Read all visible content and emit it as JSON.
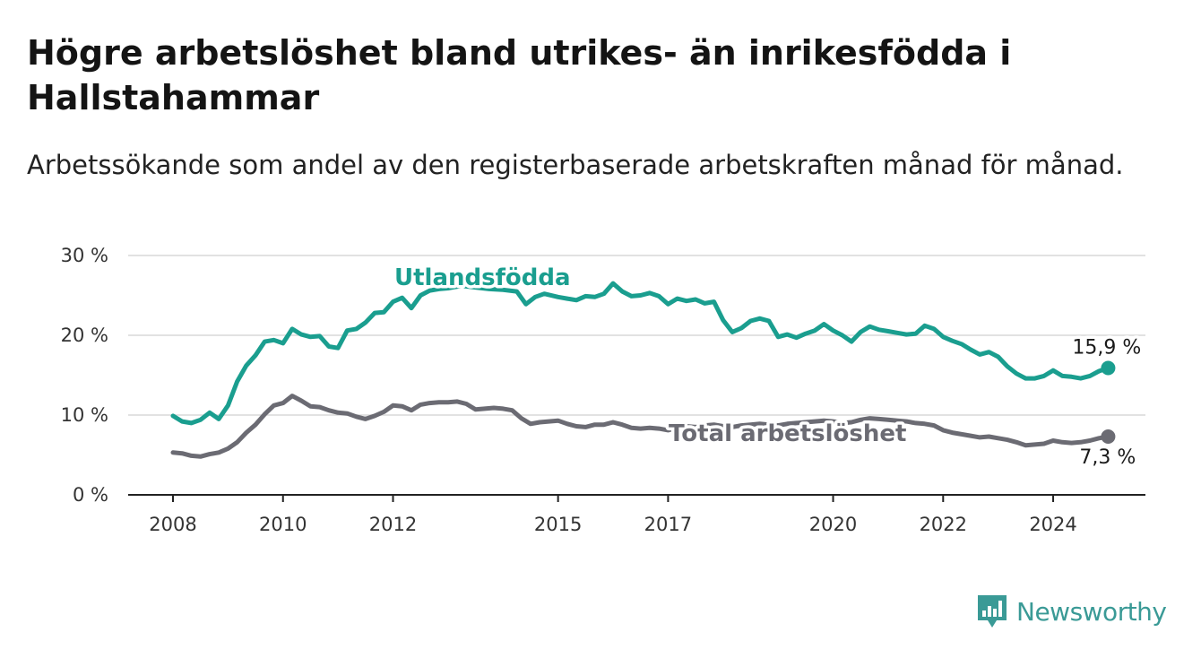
{
  "header": {
    "title": "Högre arbetslöshet bland utrikes- än inrikesfödda i Hallstahammar",
    "subtitle": "Arbetssökande som andel av den registerbaserade arbetskraften månad för månad."
  },
  "brand": {
    "name": "Newsworthy",
    "icon": "newsworthy-chart-icon",
    "color": "#3a9a96"
  },
  "chart_data": {
    "type": "line",
    "title": "Högre arbetslöshet bland utrikes- än inrikesfödda i Hallstahammar",
    "subtitle": "Arbetssökande som andel av den registerbaserade arbetskraften månad för månad.",
    "xlabel": "",
    "ylabel": "",
    "x_range": [
      "2008-01",
      "2025-06"
    ],
    "ylim": [
      0,
      30
    ],
    "y_ticks": [
      0,
      10,
      20,
      30
    ],
    "y_tick_labels": [
      "0 %",
      "10 %",
      "20 %",
      "30 %"
    ],
    "x_ticks": [
      "2008-01",
      "2010-01",
      "2012-01",
      "2015-01",
      "2017-01",
      "2020-01",
      "2022-01",
      "2024-01"
    ],
    "x_tick_labels": [
      "2008",
      "2010",
      "2012",
      "2015",
      "2017",
      "2020",
      "2022",
      "2024"
    ],
    "grid": "horizontal",
    "legend": "inline labels",
    "series": [
      {
        "name": "Utlandsfödda",
        "color": "#1a9e8f",
        "end_label": "15,9 %",
        "points": [
          [
            "2008-01",
            9.9
          ],
          [
            "2008-03",
            9.2
          ],
          [
            "2008-05",
            9.0
          ],
          [
            "2008-07",
            9.4
          ],
          [
            "2008-09",
            10.3
          ],
          [
            "2008-11",
            9.5
          ],
          [
            "2009-01",
            11.2
          ],
          [
            "2009-03",
            14.2
          ],
          [
            "2009-05",
            16.2
          ],
          [
            "2009-07",
            17.5
          ],
          [
            "2009-09",
            19.2
          ],
          [
            "2009-11",
            19.4
          ],
          [
            "2010-01",
            19.0
          ],
          [
            "2010-03",
            20.8
          ],
          [
            "2010-05",
            20.1
          ],
          [
            "2010-07",
            19.8
          ],
          [
            "2010-09",
            19.9
          ],
          [
            "2010-11",
            18.6
          ],
          [
            "2011-01",
            18.4
          ],
          [
            "2011-03",
            20.6
          ],
          [
            "2011-05",
            20.8
          ],
          [
            "2011-07",
            21.6
          ],
          [
            "2011-09",
            22.8
          ],
          [
            "2011-11",
            22.9
          ],
          [
            "2012-01",
            24.2
          ],
          [
            "2012-03",
            24.7
          ],
          [
            "2012-05",
            23.4
          ],
          [
            "2012-07",
            25.0
          ],
          [
            "2012-09",
            25.6
          ],
          [
            "2012-11",
            25.8
          ],
          [
            "2013-01",
            25.9
          ],
          [
            "2013-04",
            26.2
          ],
          [
            "2013-07",
            26.0
          ],
          [
            "2013-10",
            25.8
          ],
          [
            "2014-01",
            25.7
          ],
          [
            "2014-04",
            25.5
          ],
          [
            "2014-06",
            23.9
          ],
          [
            "2014-08",
            24.8
          ],
          [
            "2014-10",
            25.2
          ],
          [
            "2015-01",
            24.8
          ],
          [
            "2015-03",
            24.6
          ],
          [
            "2015-05",
            24.4
          ],
          [
            "2015-07",
            24.9
          ],
          [
            "2015-09",
            24.8
          ],
          [
            "2015-11",
            25.2
          ],
          [
            "2016-01",
            26.5
          ],
          [
            "2016-03",
            25.5
          ],
          [
            "2016-05",
            24.9
          ],
          [
            "2016-07",
            25.0
          ],
          [
            "2016-09",
            25.3
          ],
          [
            "2016-11",
            24.9
          ],
          [
            "2017-01",
            23.9
          ],
          [
            "2017-03",
            24.6
          ],
          [
            "2017-05",
            24.3
          ],
          [
            "2017-07",
            24.5
          ],
          [
            "2017-09",
            24.0
          ],
          [
            "2017-11",
            24.2
          ],
          [
            "2018-01",
            21.9
          ],
          [
            "2018-03",
            20.4
          ],
          [
            "2018-05",
            20.9
          ],
          [
            "2018-07",
            21.8
          ],
          [
            "2018-09",
            22.1
          ],
          [
            "2018-11",
            21.8
          ],
          [
            "2019-01",
            19.8
          ],
          [
            "2019-03",
            20.1
          ],
          [
            "2019-05",
            19.7
          ],
          [
            "2019-07",
            20.2
          ],
          [
            "2019-09",
            20.6
          ],
          [
            "2019-11",
            21.4
          ],
          [
            "2020-01",
            20.6
          ],
          [
            "2020-03",
            20.0
          ],
          [
            "2020-05",
            19.2
          ],
          [
            "2020-07",
            20.4
          ],
          [
            "2020-09",
            21.1
          ],
          [
            "2020-11",
            20.7
          ],
          [
            "2021-01",
            20.5
          ],
          [
            "2021-03",
            20.3
          ],
          [
            "2021-05",
            20.1
          ],
          [
            "2021-07",
            20.2
          ],
          [
            "2021-09",
            21.2
          ],
          [
            "2021-11",
            20.8
          ],
          [
            "2022-01",
            19.8
          ],
          [
            "2022-03",
            19.3
          ],
          [
            "2022-05",
            18.9
          ],
          [
            "2022-07",
            18.2
          ],
          [
            "2022-09",
            17.6
          ],
          [
            "2022-11",
            17.9
          ],
          [
            "2023-01",
            17.3
          ],
          [
            "2023-03",
            16.1
          ],
          [
            "2023-05",
            15.2
          ],
          [
            "2023-07",
            14.6
          ],
          [
            "2023-09",
            14.6
          ],
          [
            "2023-11",
            14.9
          ],
          [
            "2024-01",
            15.6
          ],
          [
            "2024-03",
            14.9
          ],
          [
            "2024-05",
            14.8
          ],
          [
            "2024-07",
            14.6
          ],
          [
            "2024-09",
            14.9
          ],
          [
            "2024-11",
            15.5
          ],
          [
            "2025-01",
            15.9
          ]
        ]
      },
      {
        "name": "Total arbetslöshet",
        "color": "#6b6b73",
        "end_label": "7,3 %",
        "points": [
          [
            "2008-01",
            5.3
          ],
          [
            "2008-03",
            5.2
          ],
          [
            "2008-05",
            4.9
          ],
          [
            "2008-07",
            4.8
          ],
          [
            "2008-09",
            5.1
          ],
          [
            "2008-11",
            5.3
          ],
          [
            "2009-01",
            5.8
          ],
          [
            "2009-03",
            6.6
          ],
          [
            "2009-05",
            7.8
          ],
          [
            "2009-07",
            8.8
          ],
          [
            "2009-09",
            10.1
          ],
          [
            "2009-11",
            11.2
          ],
          [
            "2010-01",
            11.5
          ],
          [
            "2010-03",
            12.4
          ],
          [
            "2010-05",
            11.8
          ],
          [
            "2010-07",
            11.1
          ],
          [
            "2010-09",
            11.0
          ],
          [
            "2010-11",
            10.6
          ],
          [
            "2011-01",
            10.3
          ],
          [
            "2011-03",
            10.2
          ],
          [
            "2011-05",
            9.8
          ],
          [
            "2011-07",
            9.5
          ],
          [
            "2011-09",
            9.9
          ],
          [
            "2011-11",
            10.4
          ],
          [
            "2012-01",
            11.2
          ],
          [
            "2012-03",
            11.1
          ],
          [
            "2012-05",
            10.6
          ],
          [
            "2012-07",
            11.3
          ],
          [
            "2012-09",
            11.5
          ],
          [
            "2012-11",
            11.6
          ],
          [
            "2013-01",
            11.6
          ],
          [
            "2013-03",
            11.7
          ],
          [
            "2013-05",
            11.4
          ],
          [
            "2013-07",
            10.7
          ],
          [
            "2013-09",
            10.8
          ],
          [
            "2013-11",
            10.9
          ],
          [
            "2014-01",
            10.8
          ],
          [
            "2014-03",
            10.6
          ],
          [
            "2014-05",
            9.6
          ],
          [
            "2014-07",
            8.9
          ],
          [
            "2014-09",
            9.1
          ],
          [
            "2014-11",
            9.2
          ],
          [
            "2015-01",
            9.3
          ],
          [
            "2015-03",
            8.9
          ],
          [
            "2015-05",
            8.6
          ],
          [
            "2015-07",
            8.5
          ],
          [
            "2015-09",
            8.8
          ],
          [
            "2015-11",
            8.8
          ],
          [
            "2016-01",
            9.1
          ],
          [
            "2016-03",
            8.8
          ],
          [
            "2016-05",
            8.4
          ],
          [
            "2016-07",
            8.3
          ],
          [
            "2016-09",
            8.4
          ],
          [
            "2016-11",
            8.3
          ],
          [
            "2017-01",
            8.1
          ],
          [
            "2017-03",
            8.4
          ],
          [
            "2017-05",
            8.6
          ],
          [
            "2017-07",
            8.5
          ],
          [
            "2017-09",
            8.7
          ],
          [
            "2017-11",
            8.8
          ],
          [
            "2018-01",
            8.6
          ],
          [
            "2018-03",
            8.5
          ],
          [
            "2018-05",
            8.7
          ],
          [
            "2018-07",
            8.8
          ],
          [
            "2018-09",
            8.9
          ],
          [
            "2018-11",
            8.8
          ],
          [
            "2019-01",
            8.7
          ],
          [
            "2019-03",
            8.9
          ],
          [
            "2019-05",
            9.0
          ],
          [
            "2019-07",
            9.1
          ],
          [
            "2019-09",
            9.2
          ],
          [
            "2019-11",
            9.3
          ],
          [
            "2020-01",
            9.2
          ],
          [
            "2020-03",
            9.0
          ],
          [
            "2020-05",
            9.1
          ],
          [
            "2020-07",
            9.4
          ],
          [
            "2020-09",
            9.6
          ],
          [
            "2020-11",
            9.5
          ],
          [
            "2021-01",
            9.4
          ],
          [
            "2021-03",
            9.3
          ],
          [
            "2021-05",
            9.2
          ],
          [
            "2021-07",
            9.0
          ],
          [
            "2021-09",
            8.9
          ],
          [
            "2021-11",
            8.7
          ],
          [
            "2022-01",
            8.1
          ],
          [
            "2022-03",
            7.8
          ],
          [
            "2022-05",
            7.6
          ],
          [
            "2022-07",
            7.4
          ],
          [
            "2022-09",
            7.2
          ],
          [
            "2022-11",
            7.3
          ],
          [
            "2023-01",
            7.1
          ],
          [
            "2023-03",
            6.9
          ],
          [
            "2023-05",
            6.6
          ],
          [
            "2023-07",
            6.2
          ],
          [
            "2023-09",
            6.3
          ],
          [
            "2023-11",
            6.4
          ],
          [
            "2024-01",
            6.8
          ],
          [
            "2024-03",
            6.6
          ],
          [
            "2024-05",
            6.5
          ],
          [
            "2024-07",
            6.6
          ],
          [
            "2024-09",
            6.8
          ],
          [
            "2024-11",
            7.1
          ],
          [
            "2025-01",
            7.3
          ]
        ]
      }
    ]
  }
}
